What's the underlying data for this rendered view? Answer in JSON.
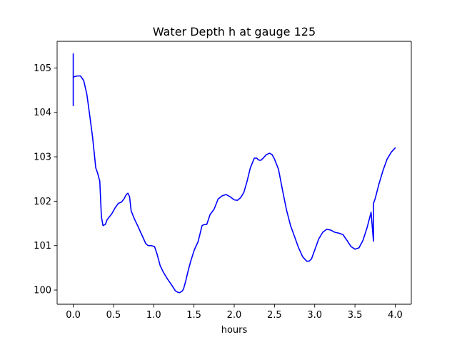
{
  "chart_data": {
    "type": "line",
    "title": "Water Depth h at gauge 125",
    "xlabel": "hours",
    "ylabel": "",
    "xlim": [
      -0.2,
      4.2
    ],
    "ylim": [
      99.68,
      105.6
    ],
    "xticks": [
      0.0,
      0.5,
      1.0,
      1.5,
      2.0,
      2.5,
      3.0,
      3.5,
      4.0
    ],
    "xtick_labels": [
      "0.0",
      "0.5",
      "1.0",
      "1.5",
      "2.0",
      "2.5",
      "3.0",
      "3.5",
      "4.0"
    ],
    "yticks": [
      100,
      101,
      102,
      103,
      104,
      105
    ],
    "ytick_labels": [
      "100",
      "101",
      "102",
      "103",
      "104",
      "105"
    ],
    "grid": false,
    "series": [
      {
        "color": "#0000ff",
        "x": [
          0.0,
          0.0,
          0.0,
          0.005,
          0.05,
          0.09,
          0.13,
          0.17,
          0.2,
          0.24,
          0.28,
          0.3,
          0.33,
          0.35,
          0.37,
          0.4,
          0.42,
          0.45,
          0.48,
          0.52,
          0.56,
          0.6,
          0.63,
          0.66,
          0.68,
          0.7,
          0.72,
          0.76,
          0.8,
          0.85,
          0.9,
          0.93,
          0.97,
          1.01,
          1.04,
          1.08,
          1.12,
          1.17,
          1.22,
          1.27,
          1.3,
          1.32,
          1.35,
          1.37,
          1.4,
          1.43,
          1.46,
          1.5,
          1.52,
          1.55,
          1.58,
          1.6,
          1.62,
          1.66,
          1.7,
          1.75,
          1.8,
          1.85,
          1.9,
          1.95,
          2.0,
          2.04,
          2.08,
          2.12,
          2.16,
          2.2,
          2.25,
          2.28,
          2.3,
          2.33,
          2.36,
          2.4,
          2.44,
          2.47,
          2.5,
          2.55,
          2.6,
          2.65,
          2.7,
          2.75,
          2.8,
          2.85,
          2.9,
          2.93,
          2.96,
          3.0,
          3.05,
          3.1,
          3.15,
          3.2,
          3.25,
          3.3,
          3.35,
          3.4,
          3.45,
          3.5,
          3.55,
          3.6,
          3.65,
          3.7,
          3.73,
          3.73,
          3.73,
          3.75,
          3.8,
          3.85,
          3.9,
          3.95,
          4.0
        ],
        "y": [
          105.32,
          104.15,
          104.78,
          104.8,
          104.82,
          104.82,
          104.72,
          104.4,
          104.0,
          103.45,
          102.75,
          102.65,
          102.45,
          101.65,
          101.45,
          101.48,
          101.58,
          101.65,
          101.72,
          101.85,
          101.95,
          101.98,
          102.05,
          102.15,
          102.18,
          102.1,
          101.78,
          101.6,
          101.45,
          101.25,
          101.05,
          101.0,
          101.0,
          100.98,
          100.82,
          100.55,
          100.4,
          100.25,
          100.12,
          99.98,
          99.95,
          99.94,
          99.97,
          100.02,
          100.22,
          100.45,
          100.65,
          100.88,
          100.97,
          101.08,
          101.3,
          101.45,
          101.47,
          101.48,
          101.7,
          101.82,
          102.05,
          102.12,
          102.15,
          102.1,
          102.03,
          102.02,
          102.08,
          102.2,
          102.45,
          102.75,
          102.97,
          102.97,
          102.93,
          102.92,
          102.97,
          103.05,
          103.08,
          103.05,
          102.95,
          102.72,
          102.25,
          101.8,
          101.45,
          101.2,
          100.95,
          100.75,
          100.65,
          100.65,
          100.7,
          100.9,
          101.15,
          101.3,
          101.37,
          101.35,
          101.3,
          101.28,
          101.25,
          101.12,
          100.98,
          100.92,
          100.95,
          101.12,
          101.4,
          101.75,
          101.1,
          101.75,
          101.95,
          102.05,
          102.4,
          102.7,
          102.95,
          103.1,
          103.2
        ]
      }
    ]
  }
}
